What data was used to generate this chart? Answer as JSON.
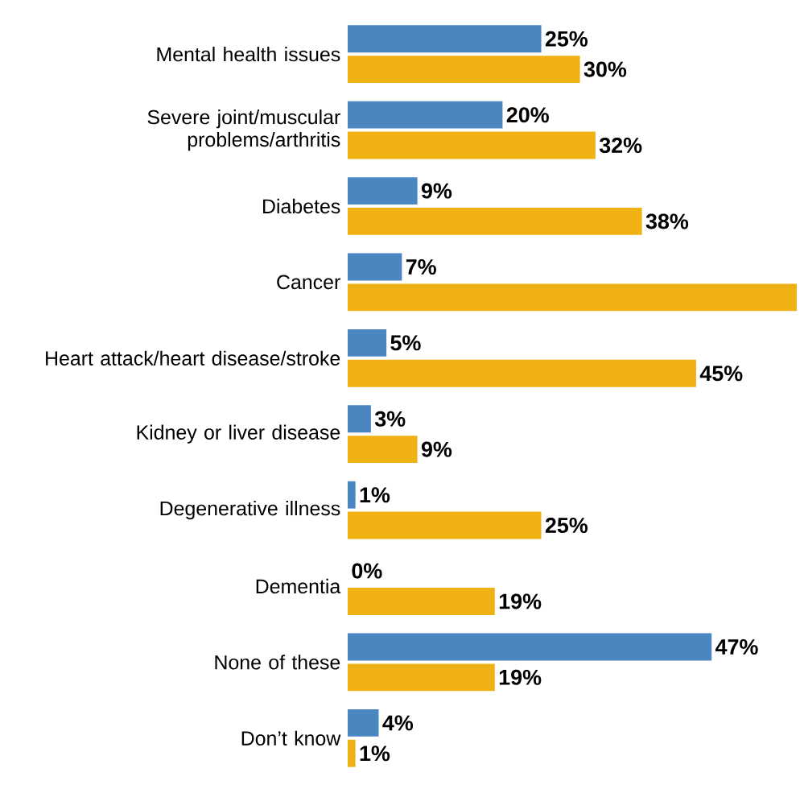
{
  "chart_data": {
    "type": "bar",
    "orientation": "horizontal",
    "categories": [
      "Mental health issues",
      "Severe joint/muscular problems/arthritis",
      "Diabetes",
      "Cancer",
      "Heart attack/heart disease/stroke",
      "Kidney or liver disease",
      "Degenerative illness",
      "Dementia",
      "None of these",
      "Don’t know"
    ],
    "series": [
      {
        "color": "#4a86c0",
        "values": [
          25,
          20,
          9,
          7,
          5,
          3,
          1,
          0,
          47,
          4
        ],
        "value_labels": [
          "25%",
          "20%",
          "9%",
          "7%",
          "5%",
          "3%",
          "1%",
          "0%",
          "47%",
          "4%"
        ]
      },
      {
        "color": "#f0b114",
        "values": [
          30,
          32,
          38,
          58,
          45,
          9,
          25,
          19,
          19,
          1
        ],
        "value_labels": [
          "30%",
          "32%",
          "38%",
          null,
          "45%",
          "9%",
          "25%",
          "19%",
          "19%",
          "1%"
        ]
      }
    ],
    "xlim": [
      0,
      58
    ],
    "tick_labels": "y"
  }
}
